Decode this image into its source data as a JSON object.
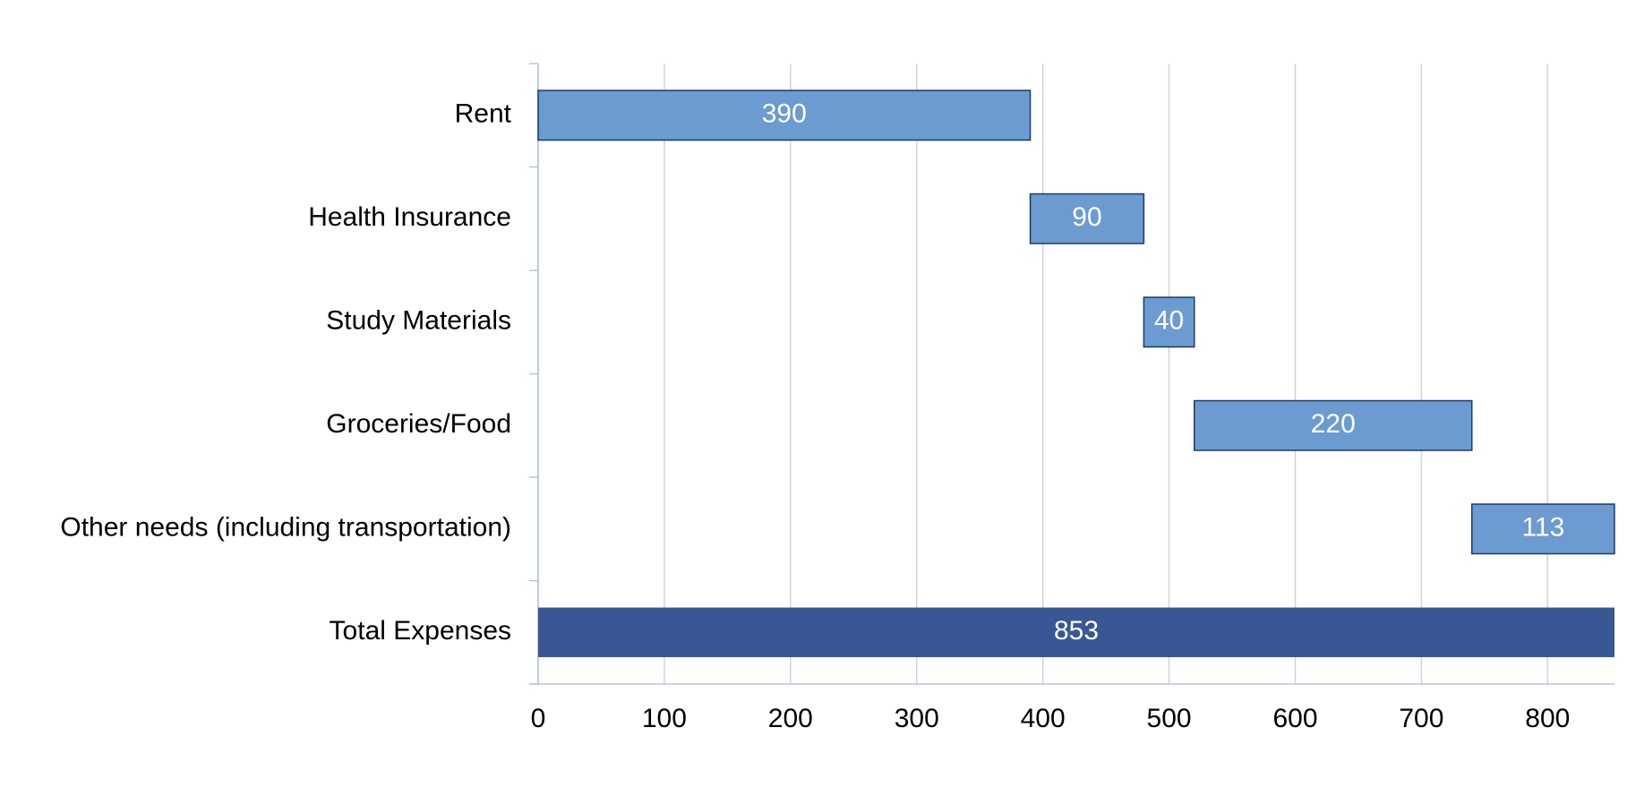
{
  "chart_data": {
    "type": "waterfall",
    "categories": [
      "Rent",
      "Health Insurance",
      "Study Materials",
      "Groceries/Food",
      "Other needs (including transportation)",
      "Total Expenses"
    ],
    "values": [
      390,
      90,
      40,
      220,
      113,
      853
    ],
    "totals": [
      false,
      false,
      false,
      false,
      false,
      true
    ],
    "color": "#6b9bd1",
    "total_color": "#3a5795",
    "orientation": "horizontal",
    "xlim": [
      0,
      853
    ],
    "xticks": [
      0,
      100,
      200,
      300,
      400,
      500,
      600,
      700,
      800
    ],
    "grid": true
  }
}
